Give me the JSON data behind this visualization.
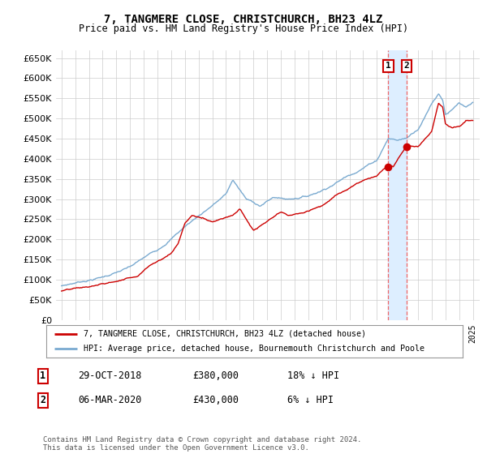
{
  "title": "7, TANGMERE CLOSE, CHRISTCHURCH, BH23 4LZ",
  "subtitle": "Price paid vs. HM Land Registry's House Price Index (HPI)",
  "ylim": [
    0,
    670000
  ],
  "yticks": [
    0,
    50000,
    100000,
    150000,
    200000,
    250000,
    300000,
    350000,
    400000,
    450000,
    500000,
    550000,
    600000,
    650000
  ],
  "hpi_color": "#7aaad0",
  "price_color": "#cc0000",
  "vline_color": "#ee6666",
  "shade_color": "#ddeeff",
  "transaction1_year": 2018.833,
  "transaction2_year": 2020.17,
  "transaction1_price": 380000,
  "transaction2_price": 430000,
  "legend_label1": "7, TANGMERE CLOSE, CHRISTCHURCH, BH23 4LZ (detached house)",
  "legend_label2": "HPI: Average price, detached house, Bournemouth Christchurch and Poole",
  "table_rows": [
    {
      "num": "1",
      "date": "29-OCT-2018",
      "price": "£380,000",
      "diff": "18% ↓ HPI"
    },
    {
      "num": "2",
      "date": "06-MAR-2020",
      "price": "£430,000",
      "diff": "6% ↓ HPI"
    }
  ],
  "footer": "Contains HM Land Registry data © Crown copyright and database right 2024.\nThis data is licensed under the Open Government Licence v3.0.",
  "background_color": "#ffffff",
  "grid_color": "#cccccc",
  "start_year": 1995,
  "end_year": 2025
}
